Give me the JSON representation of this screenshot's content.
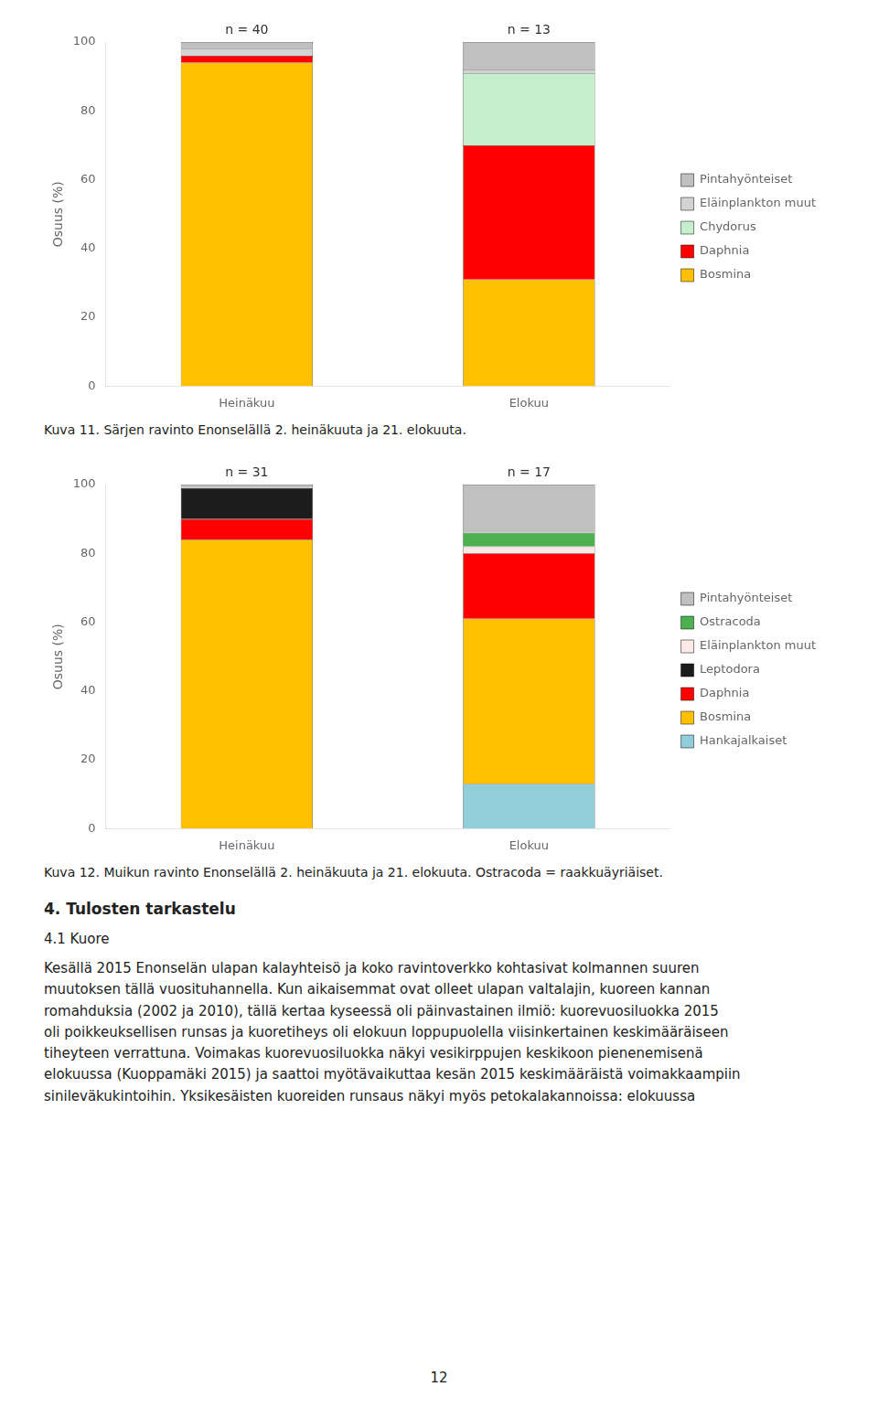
{
  "chart_data": [
    {
      "type": "bar",
      "stacked": true,
      "grid": false,
      "legend": "right",
      "categories": [
        "Heinäkuu",
        "Elokuu"
      ],
      "ylabel": "Osuus (%)",
      "ylim": [
        0,
        100
      ],
      "yticks": [
        0,
        20,
        40,
        60,
        80,
        100
      ],
      "annotations": [
        "n = 40",
        "n = 13"
      ],
      "caption": "Kuva 11. Särjen ravinto Enonselällä 2. heinäkuuta ja 21. elokuuta.",
      "series": [
        {
          "name": "Bosmina",
          "color": "#FFC000",
          "values": [
            94,
            31
          ]
        },
        {
          "name": "Daphnia",
          "color": "#FF0000",
          "values": [
            2,
            39
          ]
        },
        {
          "name": "Chydorus",
          "color": "#C6EFCE",
          "values": [
            0,
            21
          ]
        },
        {
          "name": "Eläinplankton muut",
          "color": "#D3D3D3",
          "values": [
            2,
            1
          ]
        },
        {
          "name": "Pintahyönteiset",
          "color": "#C0C0C0",
          "values": [
            2,
            8
          ]
        }
      ]
    },
    {
      "type": "bar",
      "stacked": true,
      "grid": false,
      "legend": "right",
      "categories": [
        "Heinäkuu",
        "Elokuu"
      ],
      "ylabel": "Osuus (%)",
      "ylim": [
        0,
        100
      ],
      "yticks": [
        0,
        20,
        40,
        60,
        80,
        100
      ],
      "annotations": [
        "n = 31",
        "n = 17"
      ],
      "caption": "Kuva 12. Muikun ravinto Enonselällä 2. heinäkuuta ja 21. elokuuta. Ostracoda = raakkuäyriäiset.",
      "series": [
        {
          "name": "Hankajalkaiset",
          "color": "#92CDDC",
          "values": [
            0,
            13
          ]
        },
        {
          "name": "Bosmina",
          "color": "#FFC000",
          "values": [
            84,
            48
          ]
        },
        {
          "name": "Daphnia",
          "color": "#FF0000",
          "values": [
            6,
            19
          ]
        },
        {
          "name": "Leptodora",
          "color": "#1C1C1C",
          "values": [
            9,
            0
          ]
        },
        {
          "name": "Eläinplankton muut",
          "color": "#FFE8E8",
          "values": [
            0,
            2
          ]
        },
        {
          "name": "Ostracoda",
          "color": "#4CAF50",
          "values": [
            0,
            4
          ]
        },
        {
          "name": "Pintahyönteiset",
          "color": "#C0C0C0",
          "values": [
            1,
            14
          ]
        }
      ]
    }
  ],
  "section_title": "4. Tulosten tarkastelu",
  "subsection": "4.1 Kuore",
  "body_lines": [
    "Kesällä 2015 Enonselän ulapan kalayhteisö ja koko ravintoverkko kohtasivat kolmannen suuren",
    "muutoksen tällä vuosituhannella. Kun aikaisemmat ovat olleet ulapan valtalajin, kuoreen kannan",
    "romahduksia (2002 ja 2010), tällä kertaa kyseessä oli päinvastainen ilmiö: kuorevuosiluokka 2015",
    "oli poikkeuksellisen runsas ja kuoretiheys oli elokuun loppupuolella viisinkertainen keskimääräiseen",
    "tiheyteen verrattuna. Voimakas kuorevuosiluokka näkyi vesikirppujen keskikoon pienenemisenä",
    "elokuussa (Kuoppamäki 2015) ja saattoi myötävaikuttaa kesän 2015 keskimääräistä voimakkaampiin sinileväkukintoihin. Yksikesäisten kuoreiden runsaus näkyi myös petokalakannoissa: elokuussa"
  ],
  "page_number": "12"
}
